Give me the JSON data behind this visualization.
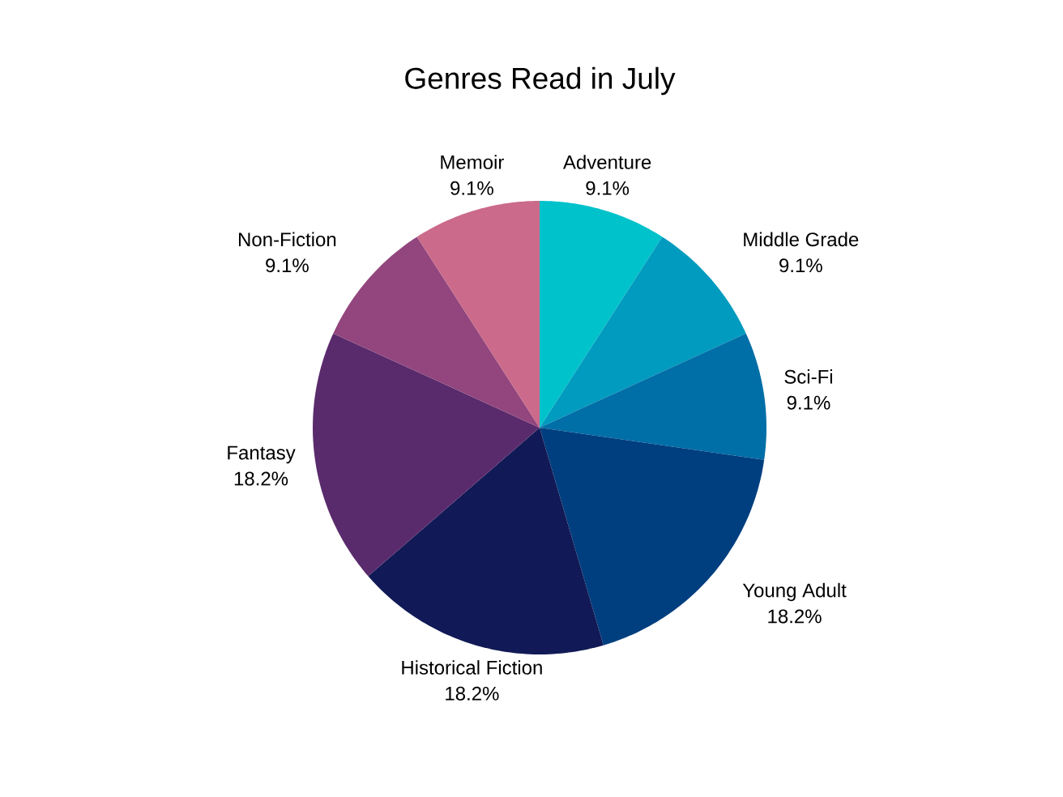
{
  "chart_data": {
    "type": "pie",
    "title": "Genres Read in July",
    "categories": [
      "Adventure",
      "Middle Grade",
      "Sci-Fi",
      "Young Adult",
      "Historical Fiction",
      "Fantasy",
      "Non-Fiction",
      "Memoir"
    ],
    "values": [
      9.1,
      9.1,
      9.1,
      18.2,
      18.2,
      18.2,
      9.1,
      9.1
    ],
    "value_labels": [
      "9.1%",
      "9.1%",
      "9.1%",
      "18.2%",
      "18.2%",
      "18.2%",
      "9.1%",
      "9.1%"
    ],
    "colors": [
      "#00C2CB",
      "#009BBF",
      "#006EA7",
      "#003F7F",
      "#111A56",
      "#5A2B6C",
      "#92467D",
      "#CB6A8A"
    ]
  }
}
